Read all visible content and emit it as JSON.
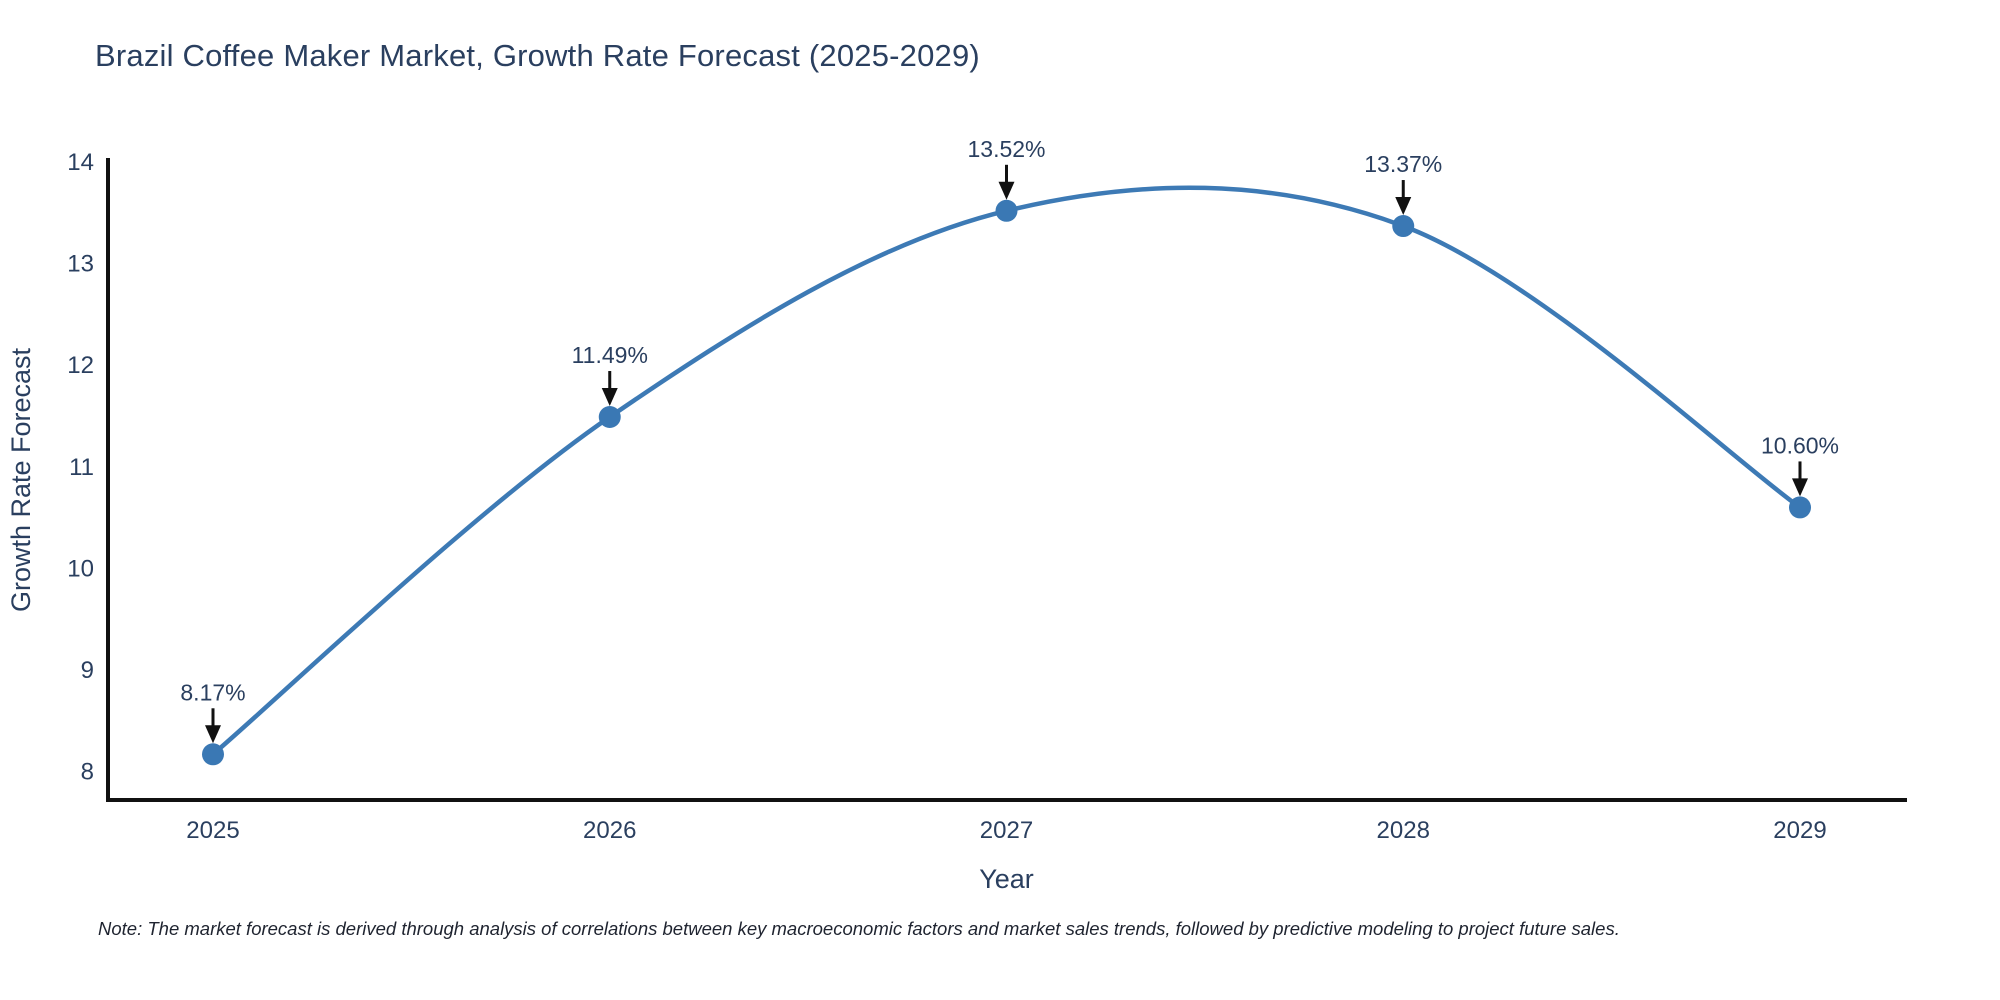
{
  "title": "Brazil Coffee Maker Market, Growth Rate Forecast (2025-2029)",
  "footnote": "Note: The market forecast is derived through analysis of correlations between key macroeconomic factors and market sales trends, followed by predictive modeling to project future sales.",
  "chart_data": {
    "type": "line",
    "title": "Brazil Coffee Maker Market, Growth Rate Forecast (2025-2029)",
    "xlabel": "Year",
    "ylabel": "Growth Rate Forecast",
    "categories": [
      "2025",
      "2026",
      "2027",
      "2028",
      "2029"
    ],
    "values": [
      8.17,
      11.49,
      13.52,
      13.37,
      10.6
    ],
    "point_labels": [
      "8.17%",
      "11.49%",
      "13.52%",
      "13.37%",
      "10.60%"
    ],
    "yticks": [
      8,
      9,
      10,
      11,
      12,
      13,
      14
    ],
    "ylim": [
      7.72,
      14.02
    ],
    "grid": false,
    "legend_position": "none",
    "line_style": "spline-smoothed with circular markers and black data-label arrows",
    "colors": {
      "line": "#3d7ab5",
      "marker": "#3a78b4",
      "arrow": "#111111",
      "text": "#2a3f5f",
      "axis": "#111111",
      "background": "#ffffff"
    }
  }
}
